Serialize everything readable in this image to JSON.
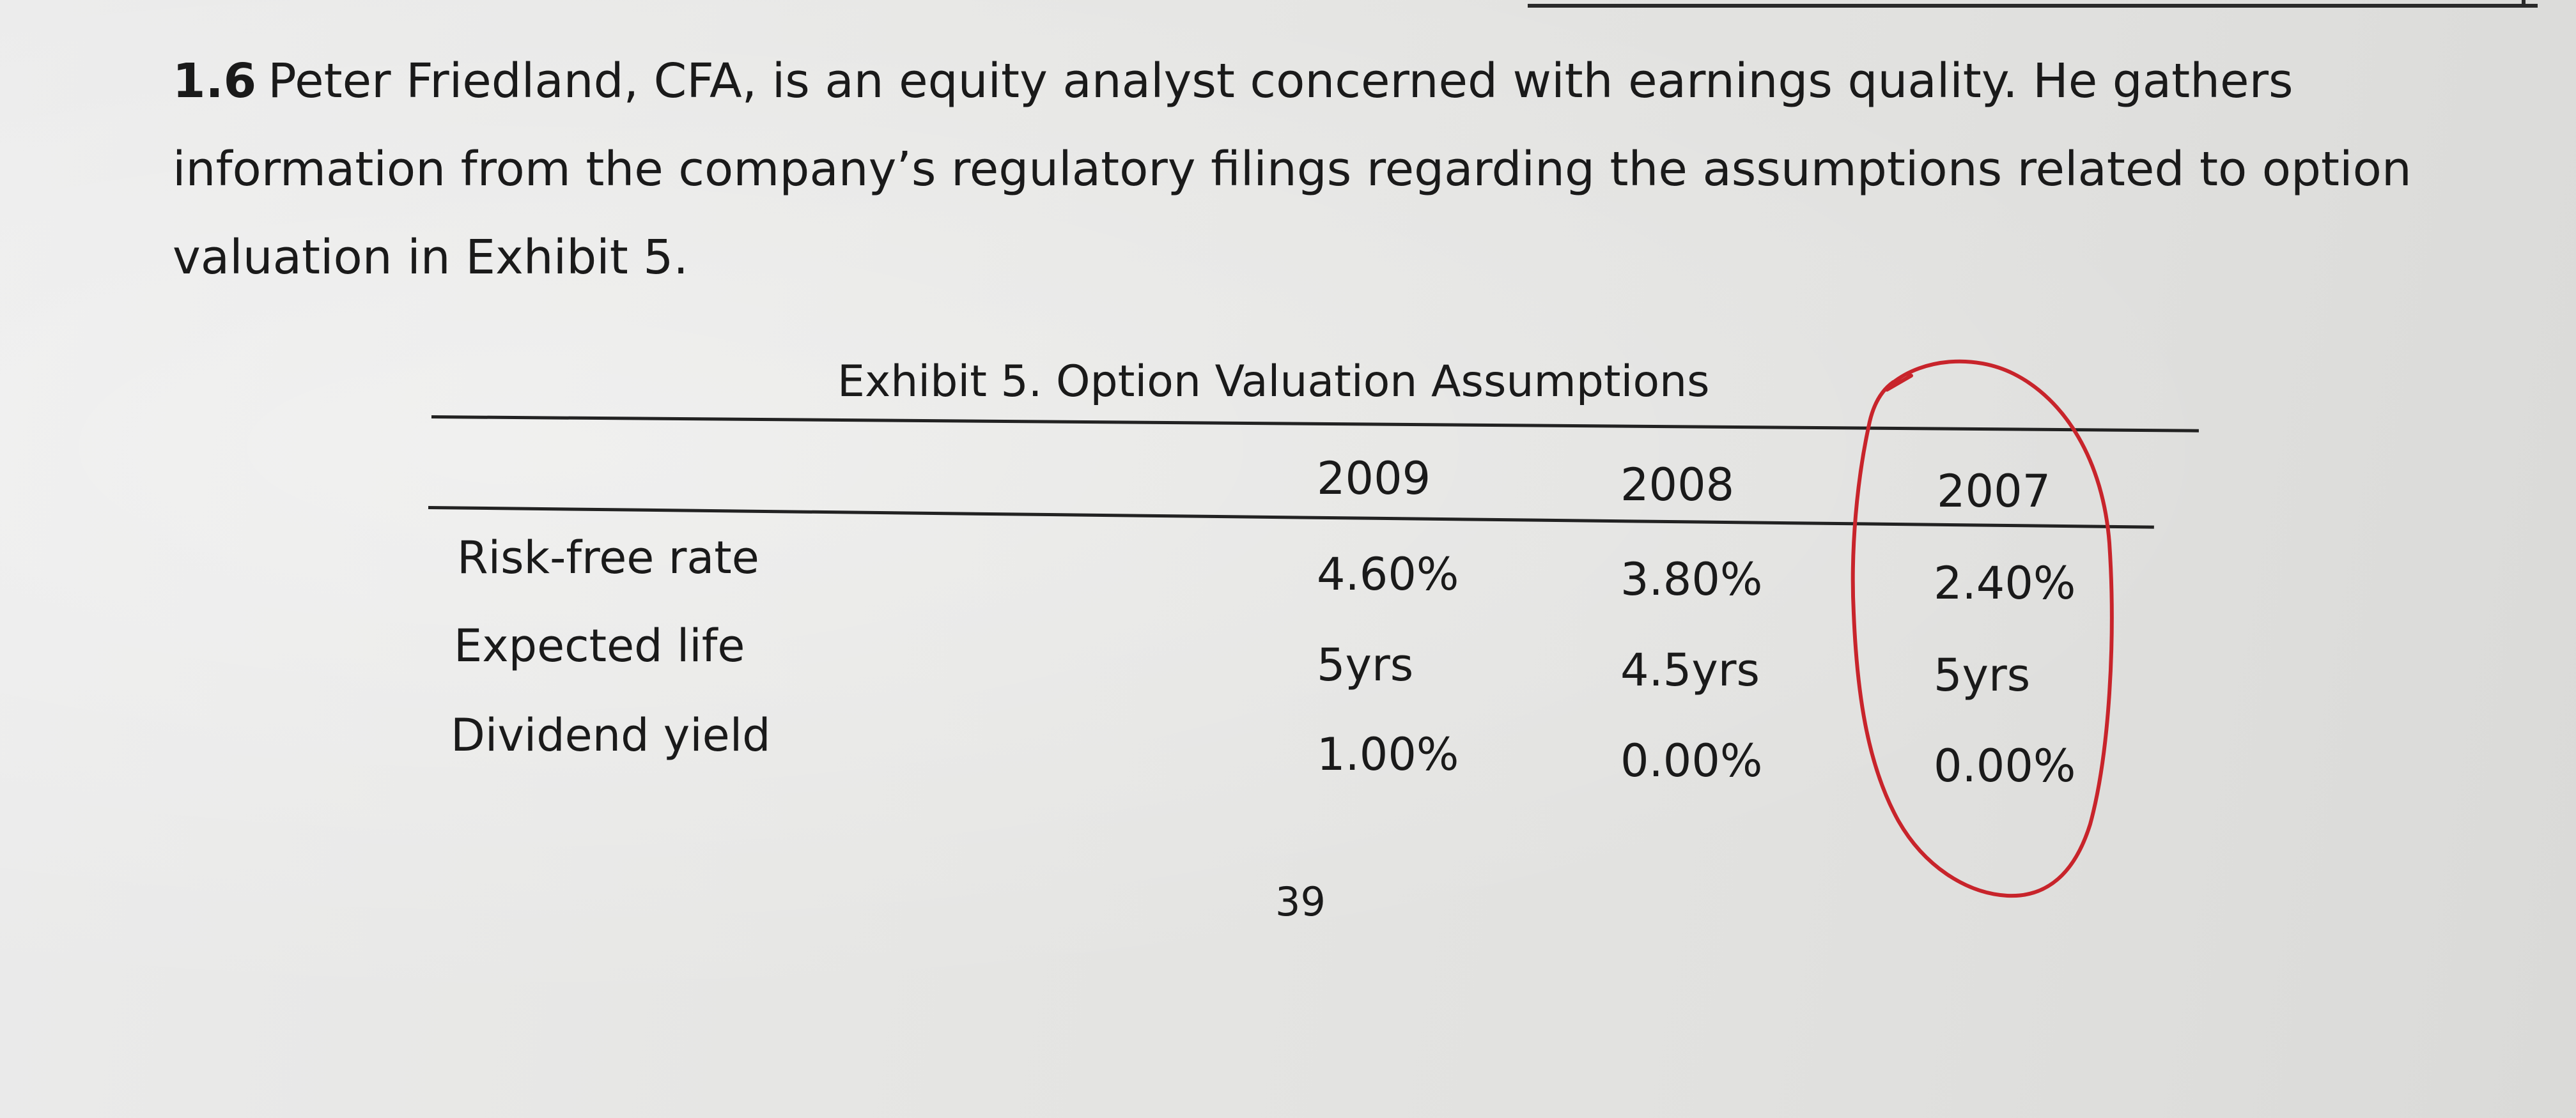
{
  "question": {
    "number": "1.6",
    "text": "Peter Friedland, CFA, is an equity analyst concerned with earnings quality. He gathers information from the company’s regulatory filings regarding the assumptions related to option valuation in Exhibit 5."
  },
  "exhibit": {
    "caption": "Exhibit 5. Option Valuation Assumptions",
    "columns": [
      "2009",
      "2008",
      "2007"
    ],
    "rows": [
      {
        "label": "Risk-free rate",
        "values": [
          "4.60%",
          "3.80%",
          "2.40%"
        ]
      },
      {
        "label": "Expected life",
        "values": [
          "5yrs",
          "4.5yrs",
          "5yrs"
        ]
      },
      {
        "label": "Dividend yield",
        "values": [
          "1.00%",
          "0.00%",
          "0.00%"
        ]
      }
    ]
  },
  "page_number": "39",
  "annotation": {
    "type": "hand-drawn-circle",
    "target": "2007-column",
    "color": "#c8242b"
  }
}
